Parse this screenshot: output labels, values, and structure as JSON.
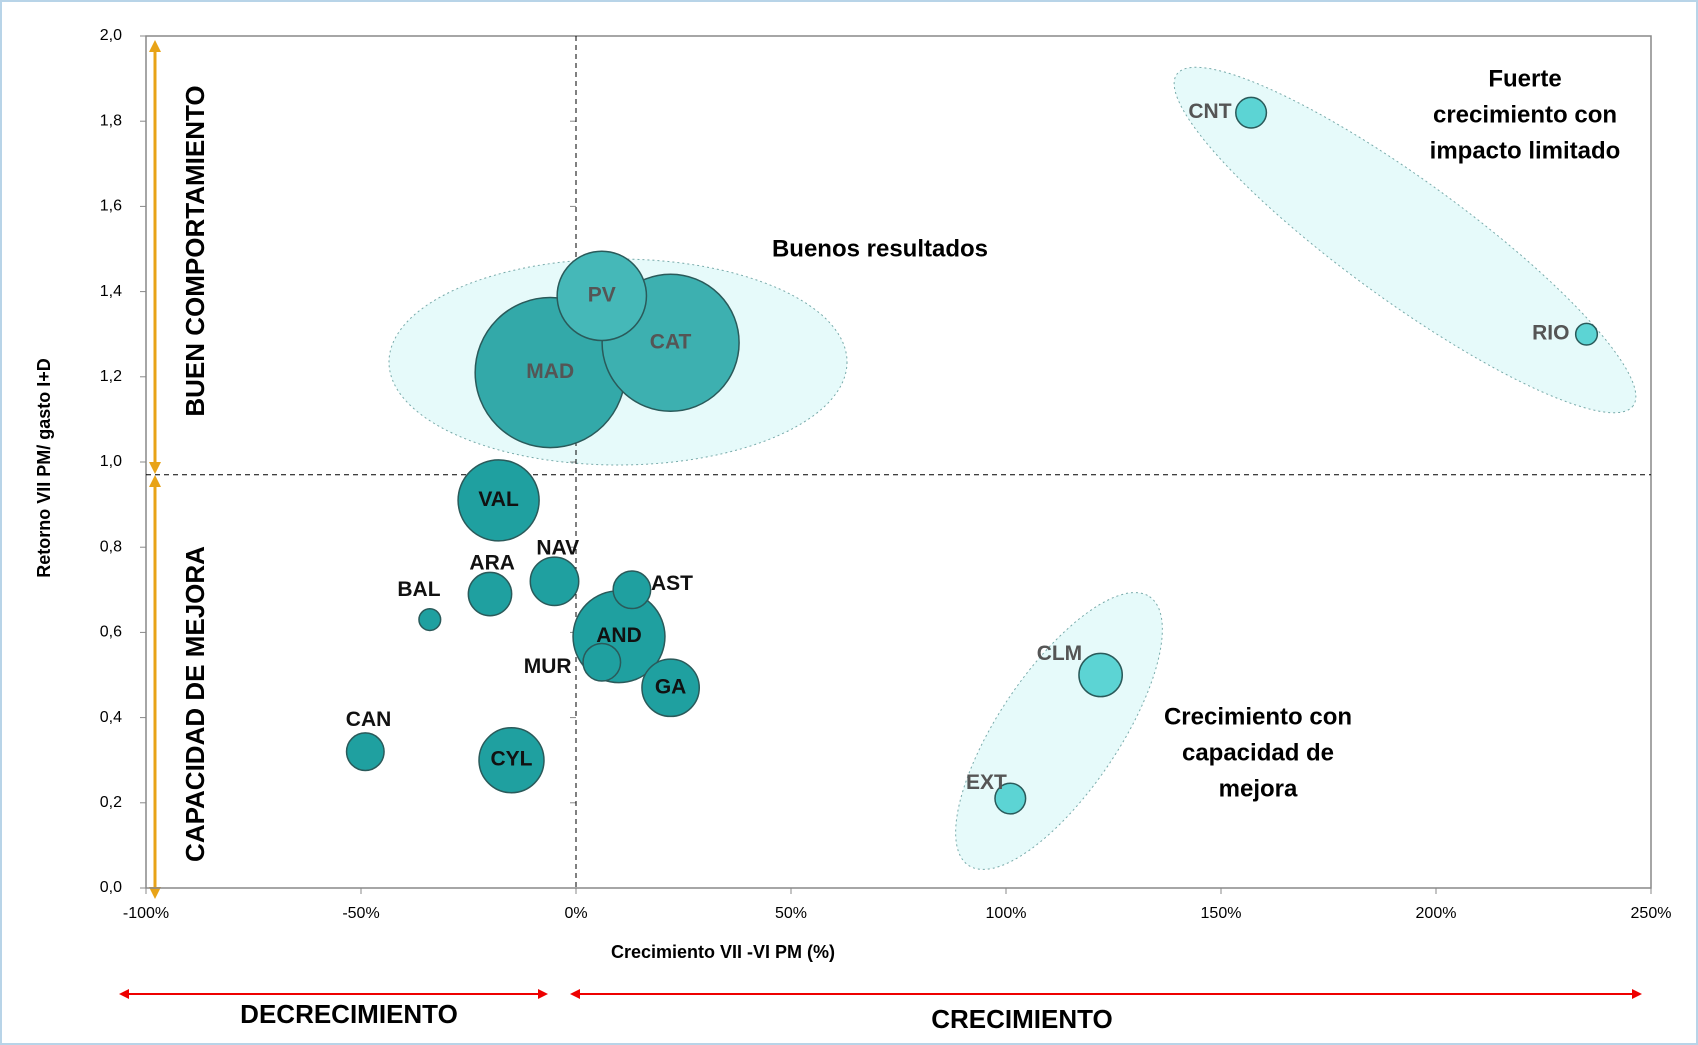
{
  "chart_data": {
    "type": "bubble",
    "x_label": "Crecimiento VII -VI PM (%)",
    "y_label": "Retorno VII PM/ gasto I+D",
    "xlim": [
      -100,
      250
    ],
    "xticks": [
      {
        "value": -100,
        "label": "-100%"
      },
      {
        "value": -50,
        "label": "-50%"
      },
      {
        "value": 0,
        "label": "0%"
      },
      {
        "value": 50,
        "label": "50%"
      },
      {
        "value": 100,
        "label": "100%"
      },
      {
        "value": 150,
        "label": "150%"
      },
      {
        "value": 200,
        "label": "200%"
      },
      {
        "value": 250,
        "label": "250%"
      }
    ],
    "ylim": [
      0,
      2
    ],
    "yticks": [
      {
        "value": 0,
        "label": "0,0"
      },
      {
        "value": 0.2,
        "label": "0,2"
      },
      {
        "value": 0.4,
        "label": "0,4"
      },
      {
        "value": 0.6,
        "label": "0,6"
      },
      {
        "value": 0.8,
        "label": "0,8"
      },
      {
        "value": 1.0,
        "label": "1,0"
      },
      {
        "value": 1.2,
        "label": "1,2"
      },
      {
        "value": 1.4,
        "label": "1,4"
      },
      {
        "value": 1.6,
        "label": "1,6"
      },
      {
        "value": 1.8,
        "label": "1,8"
      },
      {
        "value": 2.0,
        "label": "2,0"
      }
    ],
    "reference_lines": {
      "x": 0,
      "y": 0.97
    },
    "labels": [
      "MAD",
      "CAT",
      "PV",
      "VAL",
      "NAV",
      "ARA",
      "BAL",
      "AST",
      "AND",
      "MUR",
      "GA",
      "CAN",
      "CYL",
      "CLM",
      "EXT",
      "CNT",
      "RIO"
    ],
    "x": [
      -6,
      22,
      6,
      -18,
      -5,
      -20,
      -34,
      13,
      10,
      6,
      22,
      -49,
      -15,
      122,
      101,
      157,
      235
    ],
    "values": [
      1.21,
      1.28,
      1.39,
      0.91,
      0.72,
      0.69,
      0.63,
      0.7,
      0.59,
      0.53,
      0.47,
      0.32,
      0.3,
      0.5,
      0.21,
      1.82,
      1.3
    ],
    "sizes": [
      48,
      40,
      17,
      14,
      5,
      4,
      1,
      3,
      18,
      3,
      7,
      3,
      9,
      4,
      2,
      2,
      1
    ],
    "colors": [
      "#33a9a9",
      "#3db0b0",
      "#45b8b8",
      "#1fa0a0",
      "#1fa0a0",
      "#1fa0a0",
      "#1fa0a0",
      "#1fa0a0",
      "#1fa0a0",
      "#1fa0a0",
      "#1fa0a0",
      "#1fa0a0",
      "#1fa0a0",
      "#5cd4d4",
      "#5cd4d4",
      "#5cd4d4",
      "#5cd4d4"
    ],
    "annotations": [
      [
        "Buenos resultados"
      ],
      [
        "Fuerte",
        "crecimiento con",
        "impacto limitado"
      ],
      [
        "Crecimiento con",
        "capacidad de",
        "mejora"
      ]
    ],
    "quadrant_labels": [
      "BUEN COMPORTAMIENTO",
      "CAPACIDAD DE MEJORA"
    ],
    "bottom_labels": [
      "DECRECIMIENTO",
      "CRECIMIENTO"
    ]
  }
}
